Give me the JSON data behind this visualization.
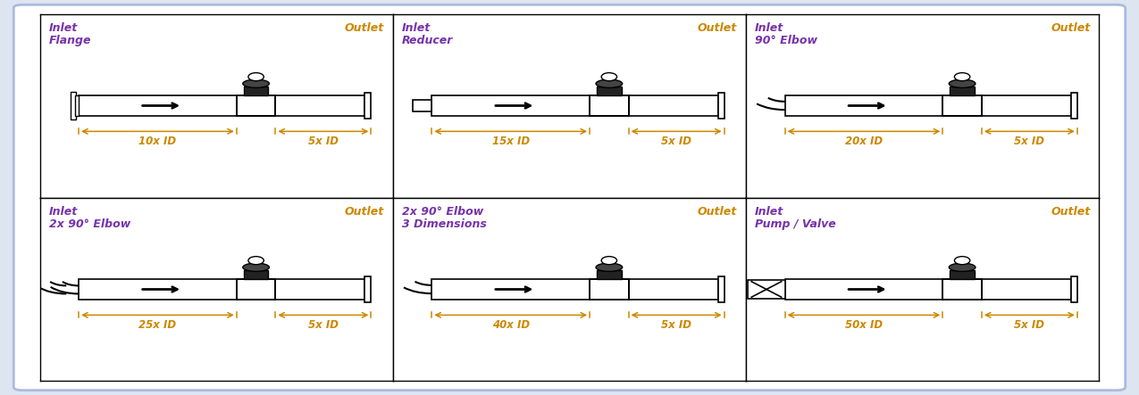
{
  "bg_color": "#dde5f0",
  "panel_bg": "#ffffff",
  "inlet_color": "#7733aa",
  "outlet_color": "#cc8800",
  "dim_color": "#cc8800",
  "panels": [
    {
      "line1": "Inlet",
      "line2": "Flange",
      "outlet": "Outlet",
      "inlet_dim": "10x ID",
      "outlet_dim": "5x ID",
      "inlet_type": "flange",
      "col": 0,
      "row": 0
    },
    {
      "line1": "Inlet",
      "line2": "Reducer",
      "outlet": "Outlet",
      "inlet_dim": "15x ID",
      "outlet_dim": "5x ID",
      "inlet_type": "reducer",
      "col": 1,
      "row": 0
    },
    {
      "line1": "Inlet",
      "line2": "90° Elbow",
      "outlet": "Outlet",
      "inlet_dim": "20x ID",
      "outlet_dim": "5x ID",
      "inlet_type": "elbow",
      "col": 2,
      "row": 0
    },
    {
      "line1": "Inlet",
      "line2": "2x 90° Elbow",
      "outlet": "Outlet",
      "inlet_dim": "25x ID",
      "outlet_dim": "5x ID",
      "inlet_type": "double_elbow",
      "col": 0,
      "row": 1
    },
    {
      "line1": "2x 90° Elbow",
      "line2": "3 Dimensions",
      "outlet": "Outlet",
      "inlet_dim": "40x ID",
      "outlet_dim": "5x ID",
      "inlet_type": "elbow",
      "col": 1,
      "row": 1
    },
    {
      "line1": "Inlet",
      "line2": "Pump / Valve",
      "outlet": "Outlet",
      "inlet_dim": "50x ID",
      "outlet_dim": "5x ID",
      "inlet_type": "pump",
      "col": 2,
      "row": 1
    }
  ]
}
